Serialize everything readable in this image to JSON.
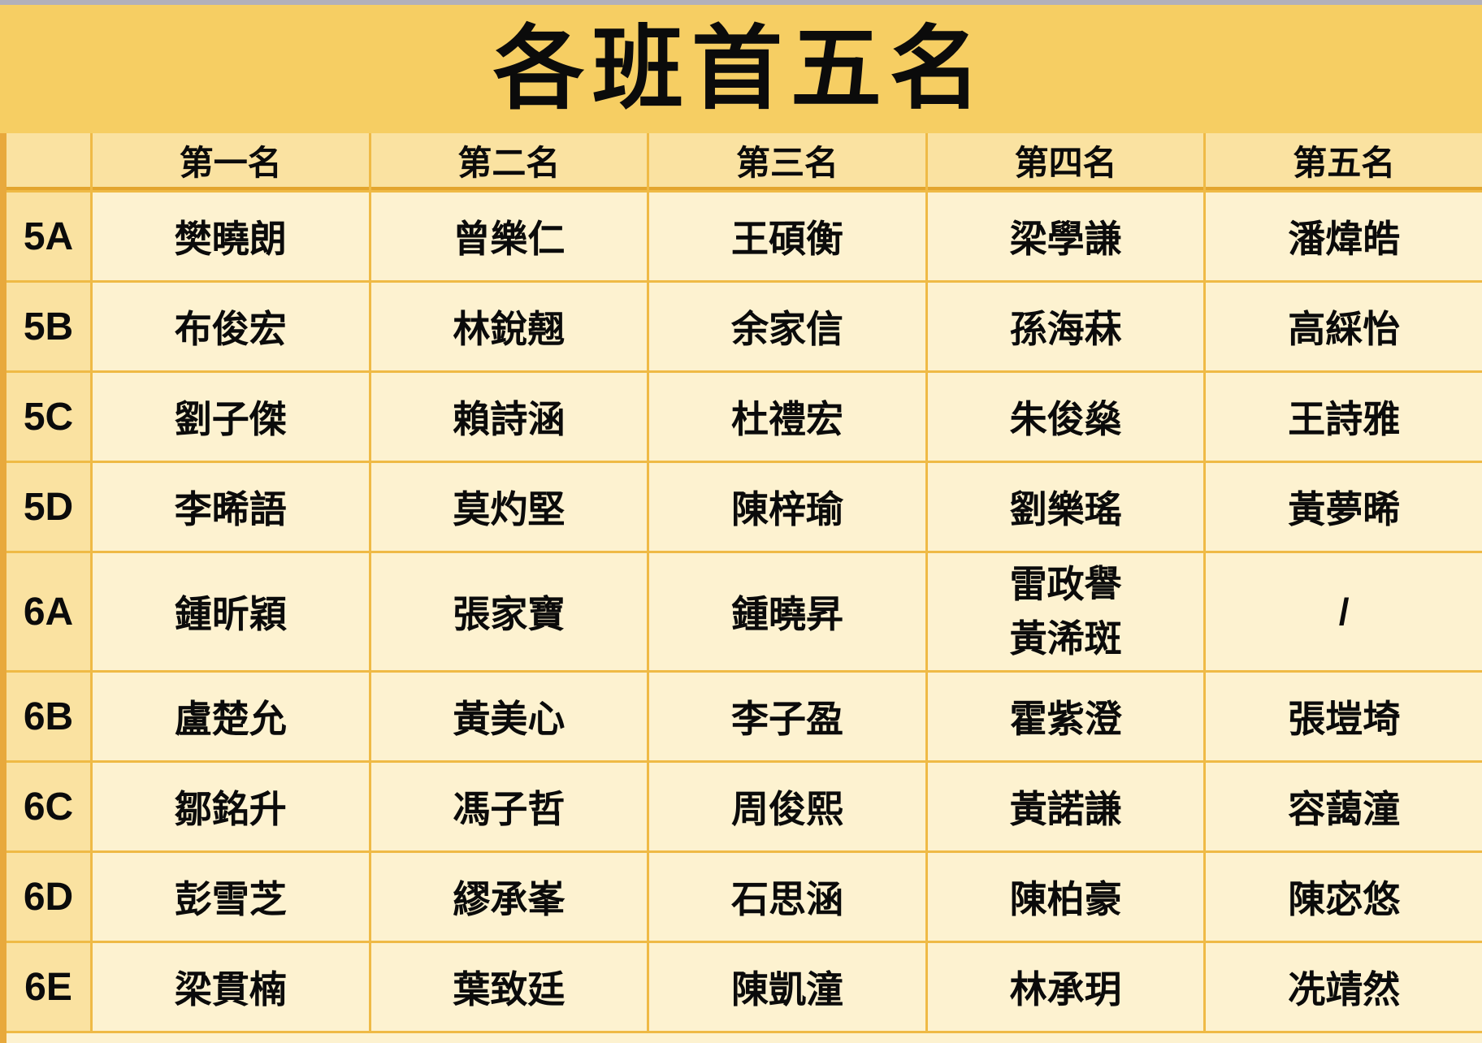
{
  "title": "各班首五名",
  "table": {
    "headers": [
      "",
      "第一名",
      "第二名",
      "第三名",
      "第四名",
      "第五名"
    ],
    "rows": [
      {
        "class": "5A",
        "ranks": [
          "樊曉朗",
          "曾樂仁",
          "王碩衡",
          "梁學謙",
          "潘煒皓"
        ]
      },
      {
        "class": "5B",
        "ranks": [
          "布俊宏",
          "林銳翹",
          "余家信",
          "孫海菻",
          "高綵怡"
        ]
      },
      {
        "class": "5C",
        "ranks": [
          "劉子傑",
          "賴詩涵",
          "杜禮宏",
          "朱俊燊",
          "王詩雅"
        ]
      },
      {
        "class": "5D",
        "ranks": [
          "李晞語",
          "莫灼堅",
          "陳梓瑜",
          "劉樂瑤",
          "黃夢晞"
        ]
      },
      {
        "class": "6A",
        "ranks": [
          "鍾昕穎",
          "張家寶",
          "鍾曉昇",
          "雷政譽\n黃浠斑",
          "/"
        ]
      },
      {
        "class": "6B",
        "ranks": [
          "盧楚允",
          "黃美心",
          "李子盈",
          "霍紫澄",
          "張塏埼"
        ]
      },
      {
        "class": "6C",
        "ranks": [
          "鄒銘升",
          "馮子哲",
          "周俊熙",
          "黃諾謙",
          "容藹潼"
        ]
      },
      {
        "class": "6D",
        "ranks": [
          "彭雪芝",
          "繆承峯",
          "石思涵",
          "陳柏豪",
          "陳宓悠"
        ]
      },
      {
        "class": "6E",
        "ranks": [
          "梁貫楠",
          "葉致廷",
          "陳凱潼",
          "林承玥",
          "冼靖然"
        ]
      }
    ]
  },
  "colors": {
    "top_strip": "#b2b0ba",
    "title_band": "#f6ce63",
    "header_cell": "#fae2a1",
    "name_cell": "#fdf2d0",
    "grid_line": "#efba46",
    "left_edge": "#e8a93c",
    "header_underline": "#e3a52e",
    "text": "#0b0b0b"
  }
}
